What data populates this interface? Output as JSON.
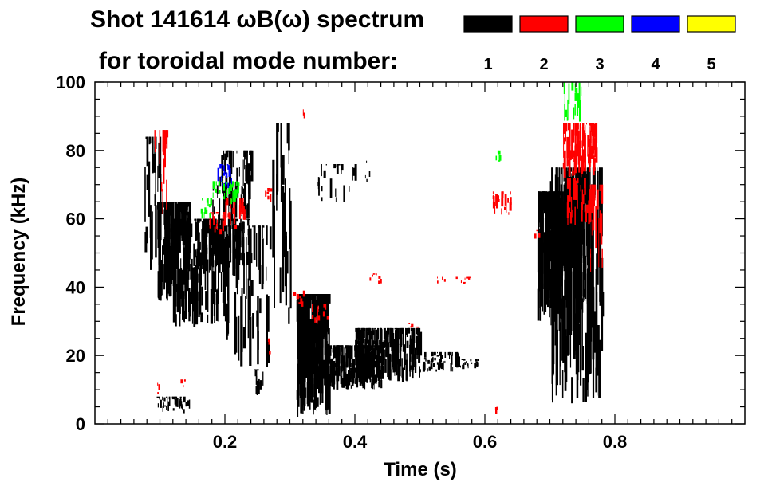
{
  "chart_data": {
    "type": "scatter",
    "title_line1": "Shot 141614 ωB(ω) spectrum",
    "title_line2": "for toroidal mode number:",
    "xlabel": "Time (s)",
    "ylabel": "Frequency (kHz)",
    "xlim": [
      0.0,
      1.0
    ],
    "ylim": [
      0,
      100
    ],
    "x_ticks": [
      0.2,
      0.4,
      0.6,
      0.8
    ],
    "x_tick_labels": [
      "0.2",
      "0.4",
      "0.6",
      "0.8"
    ],
    "y_ticks": [
      0,
      20,
      40,
      60,
      80,
      100
    ],
    "y_tick_labels": [
      "0",
      "20",
      "40",
      "60",
      "80",
      "100"
    ],
    "legend": [
      {
        "label": "1",
        "color": "#000000"
      },
      {
        "label": "2",
        "color": "#ff0000"
      },
      {
        "label": "3",
        "color": "#00ff00"
      },
      {
        "label": "4",
        "color": "#0000ff"
      },
      {
        "label": "5",
        "color": "#ffff00"
      }
    ],
    "series": [
      {
        "name": "n=1",
        "color": "#000000",
        "bursts": [
          {
            "t0": 0.075,
            "t1": 0.1,
            "f0": 45,
            "f1": 84,
            "n": 30
          },
          {
            "t0": 0.095,
            "t1": 0.145,
            "f0": 36,
            "f1": 65,
            "n": 160
          },
          {
            "t0": 0.12,
            "t1": 0.2,
            "f0": 28,
            "f1": 60,
            "n": 140
          },
          {
            "t0": 0.15,
            "t1": 0.24,
            "f0": 45,
            "f1": 60,
            "n": 100
          },
          {
            "t0": 0.18,
            "t1": 0.24,
            "f0": 58,
            "f1": 80,
            "n": 70
          },
          {
            "t0": 0.2,
            "t1": 0.27,
            "f0": 15,
            "f1": 58,
            "n": 70
          },
          {
            "t0": 0.27,
            "t1": 0.3,
            "f0": 28,
            "f1": 88,
            "n": 25
          },
          {
            "t0": 0.095,
            "t1": 0.145,
            "f0": 3,
            "f1": 8,
            "n": 40
          },
          {
            "t0": 0.245,
            "t1": 0.26,
            "f0": 7,
            "f1": 16,
            "n": 14
          },
          {
            "t0": 0.34,
            "t1": 0.4,
            "f0": 64,
            "f1": 76,
            "n": 22
          },
          {
            "t0": 0.415,
            "t1": 0.425,
            "f0": 70,
            "f1": 77,
            "n": 4
          },
          {
            "t0": 0.31,
            "t1": 0.36,
            "f0": 2,
            "f1": 38,
            "n": 260
          },
          {
            "t0": 0.36,
            "t1": 0.44,
            "f0": 10,
            "f1": 23,
            "n": 220
          },
          {
            "t0": 0.4,
            "t1": 0.5,
            "f0": 12,
            "f1": 28,
            "n": 220
          },
          {
            "t0": 0.5,
            "t1": 0.56,
            "f0": 15,
            "f1": 21,
            "n": 60
          },
          {
            "t0": 0.56,
            "t1": 0.59,
            "f0": 16,
            "f1": 19,
            "n": 18
          },
          {
            "t0": 0.68,
            "t1": 0.72,
            "f0": 30,
            "f1": 68,
            "n": 180
          },
          {
            "t0": 0.7,
            "t1": 0.78,
            "f0": 5,
            "f1": 75,
            "n": 220
          },
          {
            "t0": 0.72,
            "t1": 0.76,
            "f0": 35,
            "f1": 70,
            "n": 80
          }
        ]
      },
      {
        "name": "n=2",
        "color": "#ff0000",
        "bursts": [
          {
            "t0": 0.09,
            "t1": 0.11,
            "f0": 60,
            "f1": 86,
            "n": 14
          },
          {
            "t0": 0.095,
            "t1": 0.1,
            "f0": 8,
            "f1": 12,
            "n": 3
          },
          {
            "t0": 0.13,
            "t1": 0.14,
            "f0": 10,
            "f1": 13,
            "n": 3
          },
          {
            "t0": 0.17,
            "t1": 0.2,
            "f0": 55,
            "f1": 62,
            "n": 20
          },
          {
            "t0": 0.2,
            "t1": 0.23,
            "f0": 57,
            "f1": 66,
            "n": 26
          },
          {
            "t0": 0.26,
            "t1": 0.27,
            "f0": 64,
            "f1": 69,
            "n": 8
          },
          {
            "t0": 0.265,
            "t1": 0.27,
            "f0": 20,
            "f1": 25,
            "n": 3
          },
          {
            "t0": 0.305,
            "t1": 0.32,
            "f0": 34,
            "f1": 39,
            "n": 10
          },
          {
            "t0": 0.33,
            "t1": 0.36,
            "f0": 29,
            "f1": 35,
            "n": 14
          },
          {
            "t0": 0.32,
            "t1": 0.325,
            "f0": 88,
            "f1": 92,
            "n": 3
          },
          {
            "t0": 0.42,
            "t1": 0.44,
            "f0": 41,
            "f1": 44,
            "n": 8
          },
          {
            "t0": 0.48,
            "t1": 0.5,
            "f0": 28,
            "f1": 30,
            "n": 4
          },
          {
            "t0": 0.52,
            "t1": 0.58,
            "f0": 41,
            "f1": 43,
            "n": 16
          },
          {
            "t0": 0.61,
            "t1": 0.64,
            "f0": 61,
            "f1": 68,
            "n": 22
          },
          {
            "t0": 0.615,
            "t1": 0.62,
            "f0": 1,
            "f1": 5,
            "n": 3
          },
          {
            "t0": 0.675,
            "t1": 0.685,
            "f0": 54,
            "f1": 57,
            "n": 3
          },
          {
            "t0": 0.72,
            "t1": 0.77,
            "f0": 72,
            "f1": 88,
            "n": 100
          },
          {
            "t0": 0.725,
            "t1": 0.76,
            "f0": 58,
            "f1": 72,
            "n": 30
          },
          {
            "t0": 0.76,
            "t1": 0.78,
            "f0": 40,
            "f1": 70,
            "n": 20
          }
        ]
      },
      {
        "name": "n=3",
        "color": "#00ff00",
        "bursts": [
          {
            "t0": 0.16,
            "t1": 0.18,
            "f0": 60,
            "f1": 66,
            "n": 12
          },
          {
            "t0": 0.18,
            "t1": 0.22,
            "f0": 64,
            "f1": 71,
            "n": 32
          },
          {
            "t0": 0.615,
            "t1": 0.625,
            "f0": 76,
            "f1": 80,
            "n": 6
          },
          {
            "t0": 0.72,
            "t1": 0.75,
            "f0": 88,
            "f1": 100,
            "n": 18
          }
        ]
      },
      {
        "name": "n=4",
        "color": "#0000ff",
        "bursts": [
          {
            "t0": 0.185,
            "t1": 0.21,
            "f0": 68,
            "f1": 76,
            "n": 16
          }
        ]
      },
      {
        "name": "n=5",
        "color": "#ffff00",
        "bursts": []
      }
    ]
  }
}
